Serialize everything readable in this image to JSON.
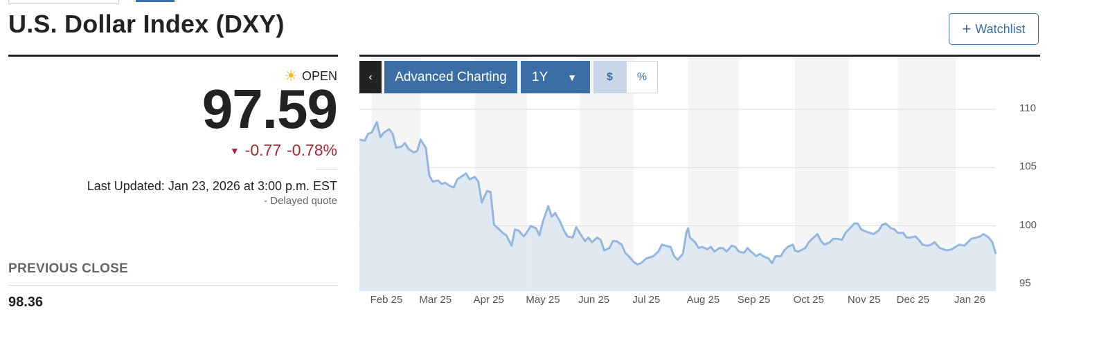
{
  "page": {
    "title": "U.S. Dollar Index (DXY)",
    "watchlist_label": "Watchlist"
  },
  "quote": {
    "status": "OPEN",
    "price": "97.59",
    "change": "-0.77",
    "change_pct": "-0.78%",
    "last_updated": "Last Updated: Jan 23, 2026 at 3:00 p.m. EST",
    "delayed": "-  Delayed quote",
    "previous_close_label": "PREVIOUS CLOSE",
    "previous_close": "98.36",
    "status_icon": "sun-icon",
    "direction_icon": "down-triangle-icon"
  },
  "chart_controls": {
    "back": "‹",
    "advanced": "Advanced Charting",
    "range": "1Y",
    "currency": "$",
    "percent": "%"
  },
  "colors": {
    "line": "#94b6df",
    "area": "#dbe4ee",
    "negative": "#a8262e",
    "accent": "#3a6ea5"
  },
  "chart_data": {
    "type": "area",
    "yticks": [
      "110",
      "105",
      "100",
      "95"
    ],
    "ylim": [
      95,
      111
    ],
    "xticks": [
      {
        "label": "Feb 25",
        "x": "2025-01-31"
      },
      {
        "label": "Mar 25",
        "x": "2025-02-28"
      },
      {
        "label": "Apr 25",
        "x": "2025-03-31"
      },
      {
        "label": "May 25",
        "x": "2025-04-30"
      },
      {
        "label": "Jun 25",
        "x": "2025-05-30"
      },
      {
        "label": "Jul 25",
        "x": "2025-06-30"
      },
      {
        "label": "Aug 25",
        "x": "2025-07-31"
      },
      {
        "label": "Sep 25",
        "x": "2025-08-29"
      },
      {
        "label": "Oct 25",
        "x": "2025-09-30"
      },
      {
        "label": "Nov 25",
        "x": "2025-10-31"
      },
      {
        "label": "Dec 25",
        "x": "2025-11-28"
      },
      {
        "label": "Jan 26",
        "x": "2025-12-31"
      }
    ],
    "grid": true,
    "points": [
      [
        "2025-01-24",
        107.4
      ],
      [
        "2025-01-27",
        107.3
      ],
      [
        "2025-01-29",
        107.9
      ],
      [
        "2025-01-31",
        108.0
      ],
      [
        "2025-02-03",
        108.9
      ],
      [
        "2025-02-05",
        107.6
      ],
      [
        "2025-02-07",
        108.0
      ],
      [
        "2025-02-10",
        108.3
      ],
      [
        "2025-02-12",
        107.9
      ],
      [
        "2025-02-14",
        106.7
      ],
      [
        "2025-02-17",
        106.8
      ],
      [
        "2025-02-19",
        107.1
      ],
      [
        "2025-02-21",
        106.6
      ],
      [
        "2025-02-24",
        106.3
      ],
      [
        "2025-02-26",
        106.4
      ],
      [
        "2025-02-28",
        107.4
      ],
      [
        "2025-03-03",
        106.7
      ],
      [
        "2025-03-05",
        104.3
      ],
      [
        "2025-03-07",
        103.8
      ],
      [
        "2025-03-10",
        103.9
      ],
      [
        "2025-03-12",
        103.6
      ],
      [
        "2025-03-14",
        103.7
      ],
      [
        "2025-03-17",
        103.4
      ],
      [
        "2025-03-19",
        103.3
      ],
      [
        "2025-03-21",
        104.0
      ],
      [
        "2025-03-24",
        104.3
      ],
      [
        "2025-03-26",
        104.5
      ],
      [
        "2025-03-28",
        104.0
      ],
      [
        "2025-03-31",
        104.2
      ],
      [
        "2025-04-02",
        103.8
      ],
      [
        "2025-04-04",
        102.0
      ],
      [
        "2025-04-07",
        103.0
      ],
      [
        "2025-04-09",
        102.9
      ],
      [
        "2025-04-11",
        100.1
      ],
      [
        "2025-04-14",
        99.7
      ],
      [
        "2025-04-16",
        99.4
      ],
      [
        "2025-04-18",
        99.2
      ],
      [
        "2025-04-21",
        98.3
      ],
      [
        "2025-04-23",
        99.7
      ],
      [
        "2025-04-25",
        99.6
      ],
      [
        "2025-04-28",
        99.1
      ],
      [
        "2025-04-30",
        99.5
      ],
      [
        "2025-05-02",
        100.0
      ],
      [
        "2025-05-05",
        99.8
      ],
      [
        "2025-05-07",
        99.2
      ],
      [
        "2025-05-09",
        100.4
      ],
      [
        "2025-05-12",
        101.7
      ],
      [
        "2025-05-14",
        100.8
      ],
      [
        "2025-05-16",
        101.1
      ],
      [
        "2025-05-19",
        100.3
      ],
      [
        "2025-05-21",
        99.6
      ],
      [
        "2025-05-23",
        99.1
      ],
      [
        "2025-05-26",
        99.0
      ],
      [
        "2025-05-28",
        99.9
      ],
      [
        "2025-05-30",
        99.4
      ],
      [
        "2025-06-02",
        98.7
      ],
      [
        "2025-06-04",
        99.0
      ],
      [
        "2025-06-06",
        98.6
      ],
      [
        "2025-06-09",
        99.0
      ],
      [
        "2025-06-11",
        98.8
      ],
      [
        "2025-06-13",
        97.9
      ],
      [
        "2025-06-16",
        98.1
      ],
      [
        "2025-06-18",
        98.7
      ],
      [
        "2025-06-20",
        98.7
      ],
      [
        "2025-06-23",
        98.4
      ],
      [
        "2025-06-25",
        97.7
      ],
      [
        "2025-06-27",
        97.4
      ],
      [
        "2025-06-30",
        96.9
      ],
      [
        "2025-07-02",
        96.7
      ],
      [
        "2025-07-04",
        96.8
      ],
      [
        "2025-07-07",
        97.2
      ],
      [
        "2025-07-09",
        97.3
      ],
      [
        "2025-07-11",
        97.4
      ],
      [
        "2025-07-14",
        97.8
      ],
      [
        "2025-07-16",
        98.4
      ],
      [
        "2025-07-18",
        98.3
      ],
      [
        "2025-07-21",
        98.2
      ],
      [
        "2025-07-23",
        97.4
      ],
      [
        "2025-07-25",
        97.1
      ],
      [
        "2025-07-28",
        97.6
      ],
      [
        "2025-07-30",
        99.4
      ],
      [
        "2025-07-31",
        99.8
      ],
      [
        "2025-08-01",
        99.0
      ],
      [
        "2025-08-04",
        98.6
      ],
      [
        "2025-08-06",
        98.1
      ],
      [
        "2025-08-08",
        98.2
      ],
      [
        "2025-08-11",
        98.0
      ],
      [
        "2025-08-13",
        98.2
      ],
      [
        "2025-08-15",
        97.8
      ],
      [
        "2025-08-18",
        98.1
      ],
      [
        "2025-08-20",
        98.1
      ],
      [
        "2025-08-22",
        97.8
      ],
      [
        "2025-08-25",
        98.3
      ],
      [
        "2025-08-27",
        98.2
      ],
      [
        "2025-08-29",
        97.8
      ],
      [
        "2025-09-01",
        97.7
      ],
      [
        "2025-09-03",
        98.1
      ],
      [
        "2025-09-05",
        97.8
      ],
      [
        "2025-09-08",
        97.4
      ],
      [
        "2025-09-10",
        97.6
      ],
      [
        "2025-09-12",
        97.4
      ],
      [
        "2025-09-15",
        97.2
      ],
      [
        "2025-09-17",
        96.8
      ],
      [
        "2025-09-19",
        97.4
      ],
      [
        "2025-09-22",
        97.4
      ],
      [
        "2025-09-24",
        97.9
      ],
      [
        "2025-09-26",
        98.2
      ],
      [
        "2025-09-29",
        98.4
      ],
      [
        "2025-09-30",
        97.9
      ],
      [
        "2025-10-02",
        97.8
      ],
      [
        "2025-10-06",
        98.1
      ],
      [
        "2025-10-08",
        98.6
      ],
      [
        "2025-10-10",
        98.9
      ],
      [
        "2025-10-13",
        99.3
      ],
      [
        "2025-10-15",
        98.7
      ],
      [
        "2025-10-17",
        98.4
      ],
      [
        "2025-10-20",
        98.6
      ],
      [
        "2025-10-22",
        98.9
      ],
      [
        "2025-10-24",
        98.9
      ],
      [
        "2025-10-27",
        98.8
      ],
      [
        "2025-10-29",
        99.4
      ],
      [
        "2025-10-31",
        99.7
      ],
      [
        "2025-11-03",
        100.2
      ],
      [
        "2025-11-05",
        100.2
      ],
      [
        "2025-11-07",
        99.7
      ],
      [
        "2025-11-10",
        99.5
      ],
      [
        "2025-11-12",
        99.4
      ],
      [
        "2025-11-14",
        99.3
      ],
      [
        "2025-11-17",
        99.6
      ],
      [
        "2025-11-19",
        100.1
      ],
      [
        "2025-11-21",
        100.2
      ],
      [
        "2025-11-24",
        99.8
      ],
      [
        "2025-11-26",
        99.7
      ],
      [
        "2025-11-28",
        99.4
      ],
      [
        "2025-12-01",
        99.4
      ],
      [
        "2025-12-03",
        99.0
      ],
      [
        "2025-12-05",
        99.0
      ],
      [
        "2025-12-08",
        99.1
      ],
      [
        "2025-12-10",
        98.8
      ],
      [
        "2025-12-12",
        98.4
      ],
      [
        "2025-12-15",
        98.3
      ],
      [
        "2025-12-17",
        98.4
      ],
      [
        "2025-12-19",
        98.6
      ],
      [
        "2025-12-22",
        98.1
      ],
      [
        "2025-12-24",
        98.0
      ],
      [
        "2025-12-26",
        97.9
      ],
      [
        "2025-12-29",
        98.0
      ],
      [
        "2025-12-31",
        98.2
      ],
      [
        "2026-01-02",
        98.4
      ],
      [
        "2026-01-05",
        98.3
      ],
      [
        "2026-01-07",
        98.6
      ],
      [
        "2026-01-09",
        98.9
      ],
      [
        "2026-01-12",
        99.0
      ],
      [
        "2026-01-14",
        99.1
      ],
      [
        "2026-01-16",
        99.3
      ],
      [
        "2026-01-19",
        99.0
      ],
      [
        "2026-01-21",
        98.6
      ],
      [
        "2026-01-23",
        97.6
      ]
    ]
  }
}
